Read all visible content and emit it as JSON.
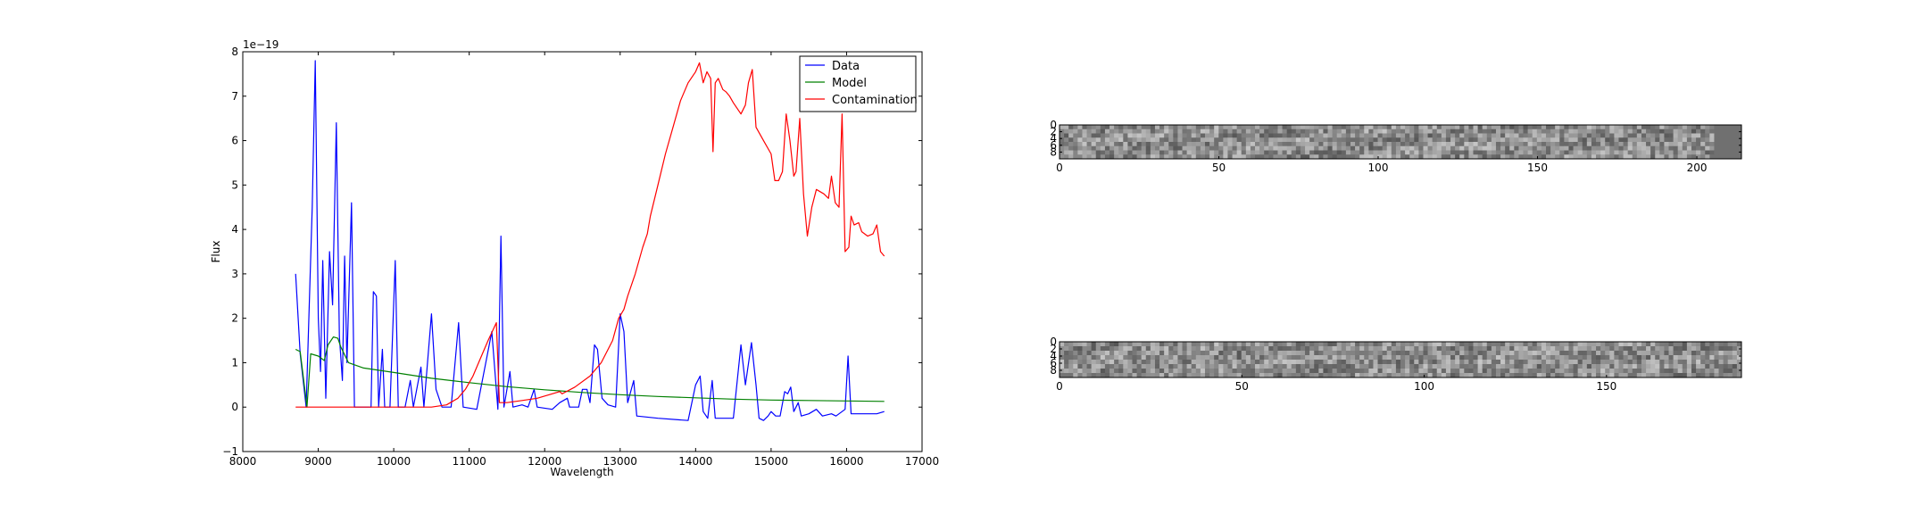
{
  "chart_data": [
    {
      "type": "line",
      "title": "",
      "xlabel": "Wavelength",
      "ylabel": "Flux",
      "y_offset_label": "1e−19",
      "xlim": [
        8000,
        17000
      ],
      "ylim": [
        -1,
        8
      ],
      "xticks": [
        8000,
        9000,
        10000,
        11000,
        12000,
        13000,
        14000,
        15000,
        16000,
        17000
      ],
      "yticks": [
        -1,
        0,
        1,
        2,
        3,
        4,
        5,
        6,
        7,
        8
      ],
      "ytick_labels": [
        "−1",
        "0",
        "1",
        "2",
        "3",
        "4",
        "5",
        "6",
        "7",
        "8"
      ],
      "grid": false,
      "legend_position": "top-right",
      "series": [
        {
          "name": "Data",
          "color": "#0000ff",
          "points": [
            [
              8700,
              3.0
            ],
            [
              8760,
              1.2
            ],
            [
              8840,
              0.0
            ],
            [
              8920,
              4.5
            ],
            [
              8960,
              7.8
            ],
            [
              9000,
              2.0
            ],
            [
              9030,
              0.8
            ],
            [
              9060,
              3.3
            ],
            [
              9100,
              0.2
            ],
            [
              9150,
              3.5
            ],
            [
              9190,
              2.3
            ],
            [
              9240,
              6.4
            ],
            [
              9280,
              1.6
            ],
            [
              9320,
              0.6
            ],
            [
              9350,
              3.4
            ],
            [
              9380,
              1.0
            ],
            [
              9440,
              4.6
            ],
            [
              9480,
              0.0
            ],
            [
              9600,
              0.0
            ],
            [
              9700,
              0.0
            ],
            [
              9730,
              2.6
            ],
            [
              9770,
              2.5
            ],
            [
              9800,
              0.0
            ],
            [
              9850,
              1.3
            ],
            [
              9880,
              0.0
            ],
            [
              9950,
              0.0
            ],
            [
              10020,
              3.3
            ],
            [
              10060,
              0.0
            ],
            [
              10150,
              0.0
            ],
            [
              10220,
              0.6
            ],
            [
              10260,
              0.0
            ],
            [
              10360,
              0.9
            ],
            [
              10400,
              0.0
            ],
            [
              10500,
              2.1
            ],
            [
              10560,
              0.4
            ],
            [
              10640,
              0.0
            ],
            [
              10760,
              0.0
            ],
            [
              10860,
              1.9
            ],
            [
              10920,
              0.0
            ],
            [
              11100,
              -0.05
            ],
            [
              11300,
              1.7
            ],
            [
              11380,
              -0.05
            ],
            [
              11420,
              3.85
            ],
            [
              11460,
              0.0
            ],
            [
              11540,
              0.8
            ],
            [
              11580,
              0.0
            ],
            [
              11700,
              0.05
            ],
            [
              11780,
              0.0
            ],
            [
              11860,
              0.4
            ],
            [
              11900,
              0.0
            ],
            [
              12100,
              -0.05
            ],
            [
              12200,
              0.1
            ],
            [
              12300,
              0.2
            ],
            [
              12330,
              0.0
            ],
            [
              12450,
              0.0
            ],
            [
              12500,
              0.4
            ],
            [
              12560,
              0.4
            ],
            [
              12600,
              0.1
            ],
            [
              12660,
              1.4
            ],
            [
              12700,
              1.3
            ],
            [
              12760,
              0.2
            ],
            [
              12840,
              0.05
            ],
            [
              12940,
              0.0
            ],
            [
              13000,
              2.1
            ],
            [
              13050,
              1.7
            ],
            [
              13100,
              0.1
            ],
            [
              13180,
              0.6
            ],
            [
              13220,
              -0.2
            ],
            [
              13500,
              -0.25
            ],
            [
              13900,
              -0.3
            ],
            [
              14000,
              0.5
            ],
            [
              14060,
              0.7
            ],
            [
              14100,
              -0.1
            ],
            [
              14160,
              -0.25
            ],
            [
              14220,
              0.6
            ],
            [
              14260,
              -0.25
            ],
            [
              14500,
              -0.25
            ],
            [
              14600,
              1.4
            ],
            [
              14660,
              0.5
            ],
            [
              14740,
              1.45
            ],
            [
              14800,
              0.5
            ],
            [
              14840,
              -0.25
            ],
            [
              14900,
              -0.3
            ],
            [
              14960,
              -0.2
            ],
            [
              15000,
              -0.1
            ],
            [
              15060,
              -0.2
            ],
            [
              15120,
              -0.2
            ],
            [
              15180,
              0.35
            ],
            [
              15220,
              0.3
            ],
            [
              15260,
              0.45
            ],
            [
              15300,
              -0.1
            ],
            [
              15360,
              0.1
            ],
            [
              15400,
              -0.2
            ],
            [
              15500,
              -0.15
            ],
            [
              15600,
              -0.05
            ],
            [
              15680,
              -0.2
            ],
            [
              15800,
              -0.15
            ],
            [
              15860,
              -0.2
            ],
            [
              15940,
              -0.1
            ],
            [
              15980,
              -0.05
            ],
            [
              16020,
              1.15
            ],
            [
              16060,
              -0.15
            ],
            [
              16200,
              -0.15
            ],
            [
              16400,
              -0.15
            ],
            [
              16500,
              -0.1
            ]
          ]
        },
        {
          "name": "Model",
          "color": "#008000",
          "points": [
            [
              8700,
              1.3
            ],
            [
              8760,
              1.25
            ],
            [
              8850,
              0.0
            ],
            [
              8900,
              1.2
            ],
            [
              9000,
              1.15
            ],
            [
              9080,
              1.05
            ],
            [
              9130,
              1.4
            ],
            [
              9200,
              1.58
            ],
            [
              9260,
              1.55
            ],
            [
              9300,
              1.35
            ],
            [
              9400,
              1.0
            ],
            [
              9600,
              0.88
            ],
            [
              10000,
              0.78
            ],
            [
              10500,
              0.65
            ],
            [
              11000,
              0.55
            ],
            [
              11500,
              0.46
            ],
            [
              12000,
              0.39
            ],
            [
              12500,
              0.33
            ],
            [
              13000,
              0.28
            ],
            [
              13500,
              0.24
            ],
            [
              14000,
              0.21
            ],
            [
              14500,
              0.18
            ],
            [
              15000,
              0.16
            ],
            [
              15500,
              0.15
            ],
            [
              16000,
              0.14
            ],
            [
              16500,
              0.13
            ]
          ]
        },
        {
          "name": "Contamination",
          "color": "#ff0000",
          "points": [
            [
              8700,
              0.0
            ],
            [
              9000,
              0.0
            ],
            [
              9500,
              0.0
            ],
            [
              10000,
              0.0
            ],
            [
              10500,
              0.0
            ],
            [
              10700,
              0.05
            ],
            [
              10850,
              0.2
            ],
            [
              10950,
              0.4
            ],
            [
              11050,
              0.7
            ],
            [
              11150,
              1.1
            ],
            [
              11250,
              1.5
            ],
            [
              11360,
              1.9
            ],
            [
              11400,
              0.1
            ],
            [
              11500,
              0.1
            ],
            [
              11700,
              0.15
            ],
            [
              11900,
              0.2
            ],
            [
              12100,
              0.3
            ],
            [
              12200,
              0.35
            ],
            [
              12230,
              0.3
            ],
            [
              12400,
              0.45
            ],
            [
              12600,
              0.7
            ],
            [
              12750,
              1.0
            ],
            [
              12900,
              1.5
            ],
            [
              12980,
              2.0
            ],
            [
              13050,
              2.2
            ],
            [
              13100,
              2.5
            ],
            [
              13200,
              3.0
            ],
            [
              13300,
              3.6
            ],
            [
              13360,
              3.9
            ],
            [
              13400,
              4.3
            ],
            [
              13500,
              5.0
            ],
            [
              13600,
              5.7
            ],
            [
              13700,
              6.3
            ],
            [
              13800,
              6.9
            ],
            [
              13900,
              7.3
            ],
            [
              14000,
              7.55
            ],
            [
              14050,
              7.75
            ],
            [
              14100,
              7.3
            ],
            [
              14150,
              7.55
            ],
            [
              14200,
              7.4
            ],
            [
              14230,
              5.75
            ],
            [
              14260,
              7.3
            ],
            [
              14300,
              7.4
            ],
            [
              14360,
              7.15
            ],
            [
              14400,
              7.1
            ],
            [
              14450,
              7.0
            ],
            [
              14500,
              6.85
            ],
            [
              14560,
              6.7
            ],
            [
              14600,
              6.6
            ],
            [
              14660,
              6.8
            ],
            [
              14700,
              7.3
            ],
            [
              14750,
              7.6
            ],
            [
              14800,
              6.3
            ],
            [
              14900,
              6.0
            ],
            [
              15000,
              5.7
            ],
            [
              15050,
              5.1
            ],
            [
              15100,
              5.1
            ],
            [
              15150,
              5.3
            ],
            [
              15200,
              6.6
            ],
            [
              15250,
              6.0
            ],
            [
              15300,
              5.2
            ],
            [
              15330,
              5.3
            ],
            [
              15380,
              6.5
            ],
            [
              15430,
              4.8
            ],
            [
              15480,
              3.85
            ],
            [
              15540,
              4.5
            ],
            [
              15600,
              4.9
            ],
            [
              15700,
              4.8
            ],
            [
              15760,
              4.7
            ],
            [
              15800,
              5.2
            ],
            [
              15850,
              4.6
            ],
            [
              15900,
              4.5
            ],
            [
              15940,
              6.6
            ],
            [
              15980,
              3.5
            ],
            [
              16030,
              3.6
            ],
            [
              16060,
              4.3
            ],
            [
              16100,
              4.1
            ],
            [
              16160,
              4.15
            ],
            [
              16200,
              3.95
            ],
            [
              16280,
              3.85
            ],
            [
              16350,
              3.9
            ],
            [
              16400,
              4.1
            ],
            [
              16450,
              3.5
            ],
            [
              16500,
              3.4
            ]
          ]
        }
      ]
    },
    {
      "type": "heatmap",
      "colormap": "gray",
      "xlim": [
        0,
        214
      ],
      "ylim": [
        10,
        0
      ],
      "xticks": [
        0,
        50,
        100,
        150,
        200
      ],
      "yticks": [
        0,
        2,
        4,
        6,
        8
      ]
    },
    {
      "type": "heatmap",
      "colormap": "gray",
      "xlim": [
        0,
        187
      ],
      "ylim": [
        10,
        0
      ],
      "xticks": [
        0,
        50,
        100,
        150
      ],
      "yticks": [
        0,
        2,
        4,
        6,
        8
      ]
    }
  ]
}
